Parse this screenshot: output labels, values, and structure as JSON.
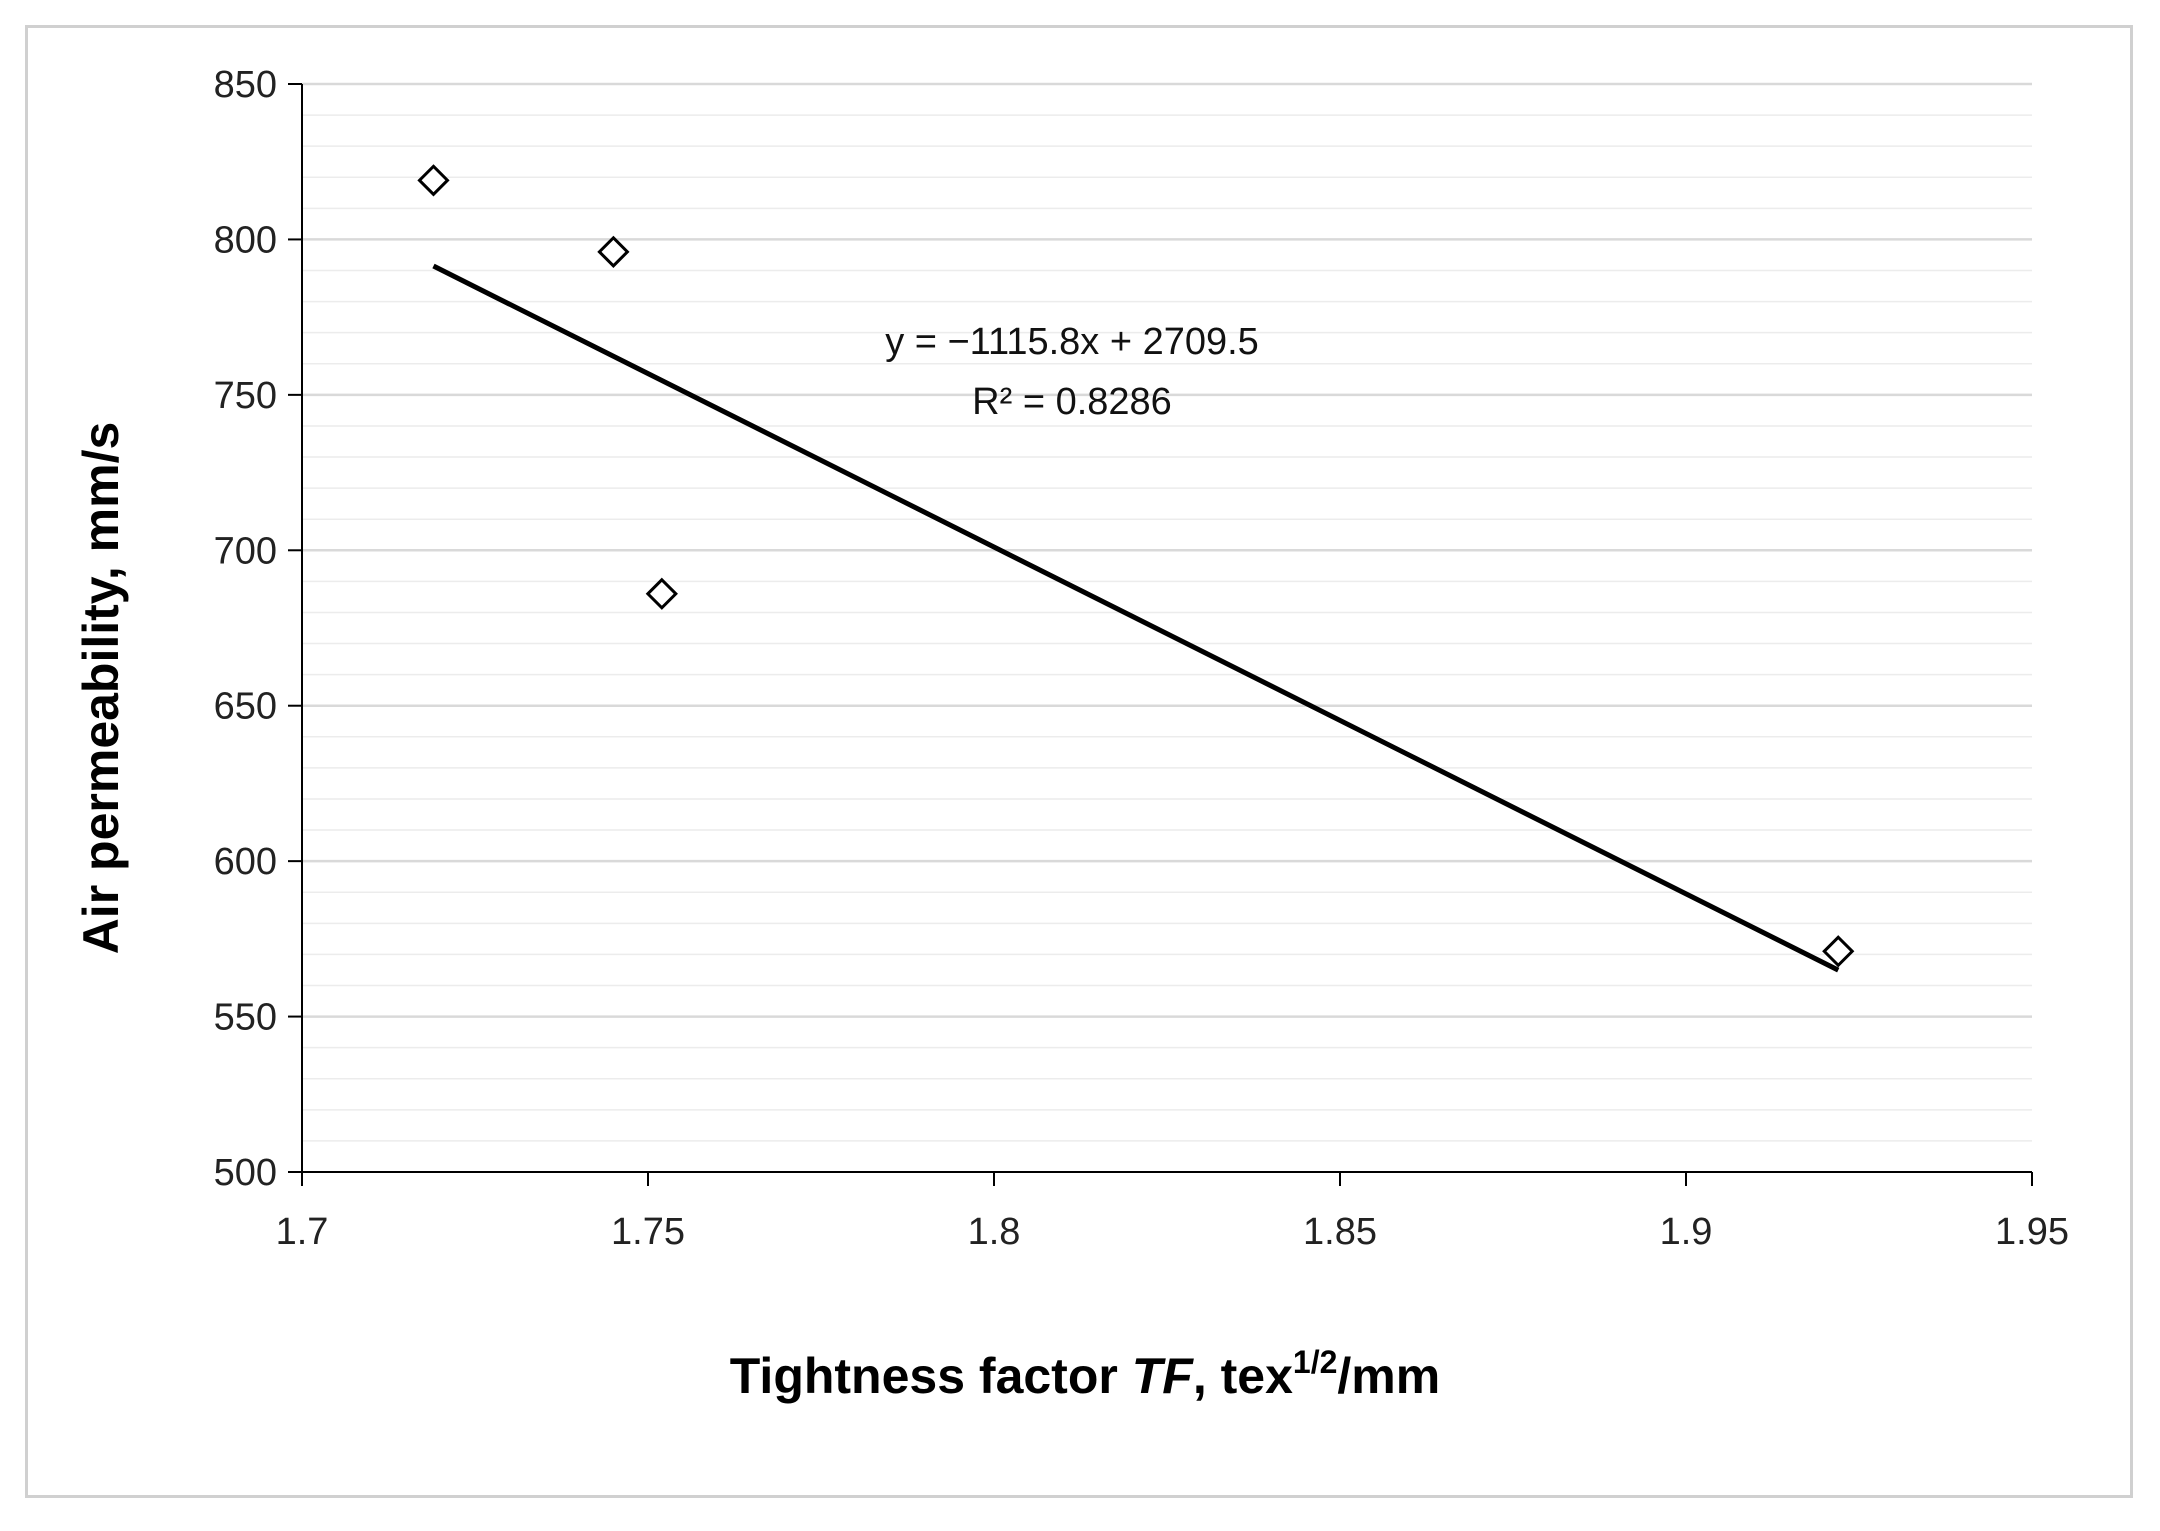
{
  "chart_data": {
    "type": "scatter",
    "title": "",
    "xlabel": {
      "text": "Tightness factor ",
      "italic": "TF",
      "after_italic": ", tex",
      "superscript": "1/2",
      "unit_tail": "/mm"
    },
    "ylabel": "Air permeability, mm/s",
    "xlim": [
      1.7,
      1.95
    ],
    "ylim": [
      500,
      850
    ],
    "x_ticks": [
      "1.7",
      "1.75",
      "1.8",
      "1.85",
      "1.9",
      "1.95"
    ],
    "y_ticks": [
      "500",
      "550",
      "600",
      "650",
      "700",
      "750",
      "800",
      "850"
    ],
    "minor_grid_step": 10,
    "grid": true,
    "marker": "diamond-open",
    "series": [
      {
        "x": [
          1.719,
          1.745,
          1.752,
          1.922
        ],
        "y": [
          819,
          796,
          686,
          571
        ]
      }
    ],
    "trendline": {
      "slope": -1115.8,
      "intercept": 2709.5,
      "x_range": [
        1.719,
        1.922
      ],
      "equation": "y = −1115.8x + 2709.5",
      "r_squared": "R² = 0.8286"
    },
    "colors": {
      "marker": "#000000",
      "trend": "#000000",
      "major_grid": "#d9d9d9",
      "minor_grid": "#ececec",
      "axis": "#000000"
    }
  }
}
